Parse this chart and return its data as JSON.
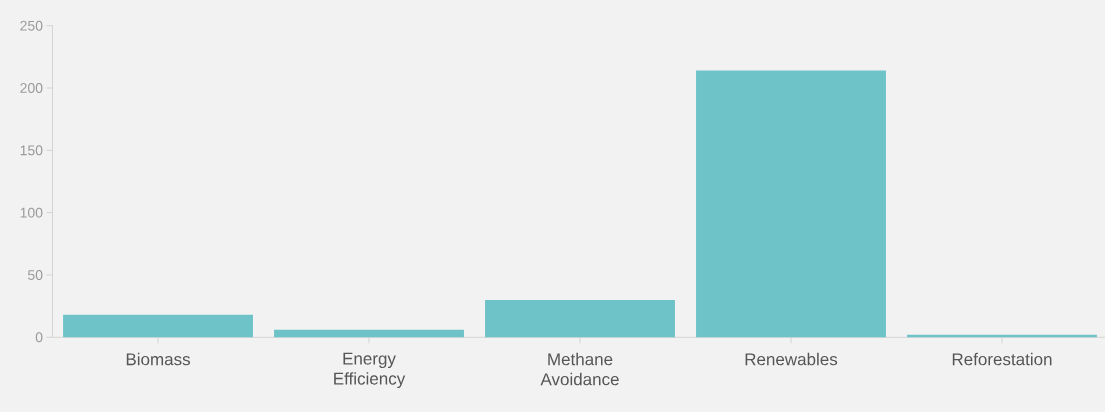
{
  "chart_data": {
    "type": "bar",
    "categories": [
      "Biomass",
      "Energy Efficiency",
      "Methane Avoidance",
      "Renewables",
      "Reforestation"
    ],
    "values": [
      18,
      6,
      30,
      214,
      2
    ],
    "color": "#6dc3c8",
    "ylim": [
      0,
      250
    ],
    "yticks": [
      0,
      50,
      100,
      150,
      200,
      250
    ],
    "grid": false
  }
}
